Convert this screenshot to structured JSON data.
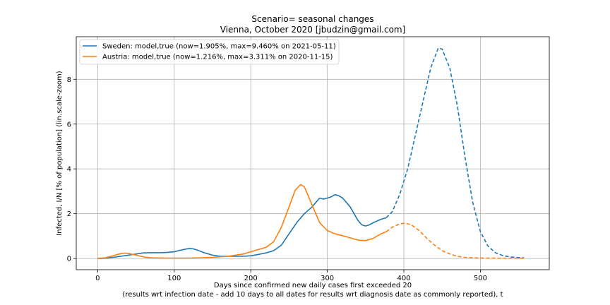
{
  "chart_data": {
    "type": "line",
    "title": "Scenario= seasonal changes",
    "subtitle": "Vienna, October 2020 [jbudzin@gmail.com]",
    "xlabel_line1": "Days since confirmed new daily cases first exceeded 20",
    "xlabel_line2": "(results wrt infection date - add 10 days to all dates for results wrt diagnosis date as commonly reported), t",
    "ylabel": "Infected, I/N [% of population] (lin.scale-zoom)",
    "xlim": [
      -28,
      590
    ],
    "ylim": [
      -0.5,
      9.9
    ],
    "xticks": [
      0,
      100,
      200,
      300,
      400,
      500
    ],
    "yticks": [
      0,
      2,
      4,
      6,
      8
    ],
    "grid": true,
    "legend_position": "top-left",
    "series": [
      {
        "name": "Sweden: model,true (now=1.905%, max=9.460% on 2021-05-11)",
        "color": "#1f77b4",
        "solid": [
          [
            0,
            0
          ],
          [
            10,
            0.01
          ],
          [
            20,
            0.05
          ],
          [
            30,
            0.1
          ],
          [
            40,
            0.15
          ],
          [
            50,
            0.2
          ],
          [
            60,
            0.25
          ],
          [
            70,
            0.26
          ],
          [
            80,
            0.26
          ],
          [
            90,
            0.27
          ],
          [
            100,
            0.3
          ],
          [
            108,
            0.37
          ],
          [
            115,
            0.42
          ],
          [
            120,
            0.45
          ],
          [
            125,
            0.43
          ],
          [
            130,
            0.38
          ],
          [
            140,
            0.25
          ],
          [
            150,
            0.15
          ],
          [
            160,
            0.1
          ],
          [
            170,
            0.1
          ],
          [
            180,
            0.1
          ],
          [
            190,
            0.1
          ],
          [
            200,
            0.12
          ],
          [
            210,
            0.18
          ],
          [
            220,
            0.25
          ],
          [
            230,
            0.35
          ],
          [
            240,
            0.6
          ],
          [
            245,
            0.85
          ],
          [
            250,
            1.1
          ],
          [
            260,
            1.6
          ],
          [
            270,
            2.0
          ],
          [
            280,
            2.3
          ],
          [
            285,
            2.5
          ],
          [
            290,
            2.7
          ],
          [
            295,
            2.65
          ],
          [
            300,
            2.7
          ],
          [
            305,
            2.75
          ],
          [
            310,
            2.85
          ],
          [
            315,
            2.8
          ],
          [
            320,
            2.7
          ],
          [
            330,
            2.3
          ],
          [
            335,
            2.0
          ],
          [
            340,
            1.7
          ],
          [
            345,
            1.5
          ],
          [
            350,
            1.45
          ],
          [
            355,
            1.5
          ],
          [
            360,
            1.6
          ],
          [
            370,
            1.75
          ],
          [
            377,
            1.82
          ]
        ],
        "dashed": [
          [
            377,
            1.82
          ],
          [
            385,
            2.1
          ],
          [
            395,
            2.9
          ],
          [
            405,
            4.0
          ],
          [
            415,
            5.5
          ],
          [
            425,
            7.0
          ],
          [
            435,
            8.5
          ],
          [
            445,
            9.4
          ],
          [
            450,
            9.35
          ],
          [
            460,
            8.5
          ],
          [
            470,
            6.8
          ],
          [
            480,
            4.5
          ],
          [
            490,
            2.5
          ],
          [
            500,
            1.2
          ],
          [
            510,
            0.55
          ],
          [
            520,
            0.25
          ],
          [
            530,
            0.12
          ],
          [
            540,
            0.07
          ],
          [
            550,
            0.04
          ],
          [
            557,
            0.03
          ]
        ]
      },
      {
        "name": "Austria: model,true (now=1.216%, max=3.311% on 2020-11-15)",
        "color": "#ff7f0e",
        "solid": [
          [
            0,
            0
          ],
          [
            10,
            0.03
          ],
          [
            20,
            0.12
          ],
          [
            30,
            0.22
          ],
          [
            35,
            0.24
          ],
          [
            40,
            0.23
          ],
          [
            50,
            0.15
          ],
          [
            60,
            0.07
          ],
          [
            70,
            0.03
          ],
          [
            90,
            0.02
          ],
          [
            120,
            0.02
          ],
          [
            150,
            0.05
          ],
          [
            170,
            0.1
          ],
          [
            180,
            0.15
          ],
          [
            190,
            0.2
          ],
          [
            200,
            0.3
          ],
          [
            210,
            0.4
          ],
          [
            220,
            0.5
          ],
          [
            230,
            0.75
          ],
          [
            240,
            1.4
          ],
          [
            250,
            2.3
          ],
          [
            258,
            3.05
          ],
          [
            265,
            3.3
          ],
          [
            270,
            3.2
          ],
          [
            280,
            2.4
          ],
          [
            290,
            1.6
          ],
          [
            300,
            1.25
          ],
          [
            310,
            1.1
          ],
          [
            320,
            1.02
          ],
          [
            330,
            0.92
          ],
          [
            340,
            0.82
          ],
          [
            350,
            0.8
          ],
          [
            360,
            0.9
          ],
          [
            370,
            1.1
          ],
          [
            377,
            1.2
          ]
        ],
        "dashed": [
          [
            377,
            1.2
          ],
          [
            385,
            1.4
          ],
          [
            395,
            1.55
          ],
          [
            402,
            1.58
          ],
          [
            410,
            1.5
          ],
          [
            420,
            1.25
          ],
          [
            430,
            0.9
          ],
          [
            440,
            0.6
          ],
          [
            450,
            0.35
          ],
          [
            460,
            0.2
          ],
          [
            470,
            0.1
          ],
          [
            480,
            0.05
          ],
          [
            500,
            0.02
          ],
          [
            557,
            0.01
          ]
        ]
      }
    ]
  }
}
